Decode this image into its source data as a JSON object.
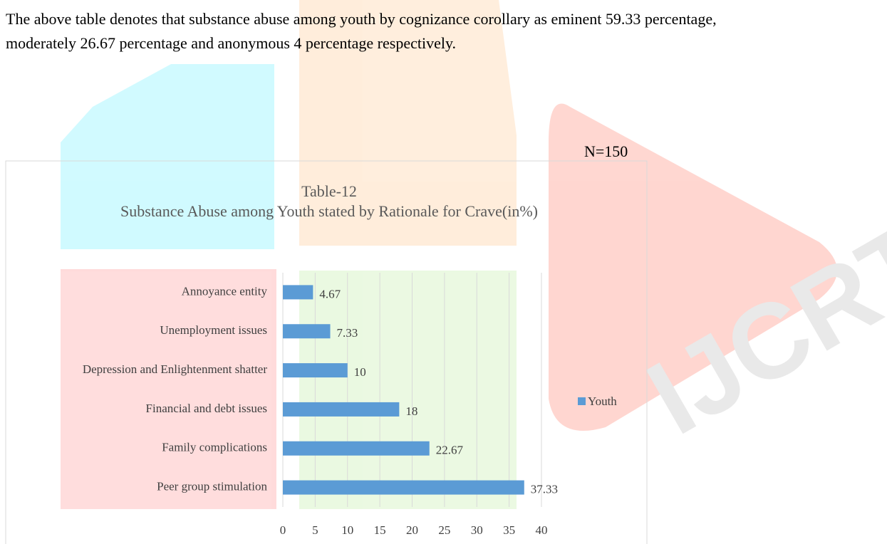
{
  "paragraph": "The above table denotes that substance abuse among youth by cognizance corollary as eminent 59.33 percentage, moderately 26.67 percentage and anonymous 4 percentage respectively.",
  "note": "N=150",
  "chart_data": {
    "type": "bar",
    "orientation": "horizontal",
    "title": "Table-12",
    "subtitle": "Substance Abuse among Youth stated by Rationale for Crave(in%)",
    "categories": [
      "Annoyance entity",
      "Unemployment issues",
      "Depression and Enlightenment shatter",
      "Financial and debt issues",
      "Family complications",
      "Peer group stimulation"
    ],
    "series": [
      {
        "name": "Youth",
        "color": "#5b9bd5",
        "values": [
          4.67,
          7.33,
          10,
          18,
          22.67,
          37.33
        ]
      }
    ],
    "xlim": [
      0,
      40
    ],
    "xticks": [
      0,
      5,
      10,
      15,
      20,
      25,
      30,
      35,
      40
    ],
    "grid": true,
    "legend": "right"
  }
}
